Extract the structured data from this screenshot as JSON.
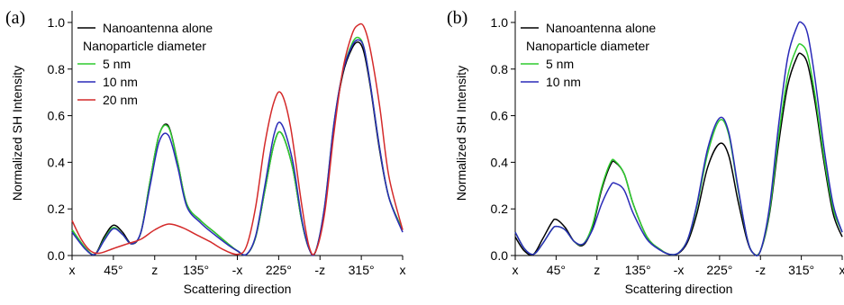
{
  "chart_data": [
    {
      "type": "line",
      "panel_label": "(a)",
      "xlabel": "Scattering direction",
      "ylabel": "Normalized SH Intensity",
      "xlim": [
        0,
        360
      ],
      "ylim": [
        0,
        1.05
      ],
      "x_ticks": [
        0,
        45,
        90,
        135,
        180,
        225,
        270,
        315,
        360
      ],
      "x_tick_labels": [
        "x",
        "45°",
        "z",
        "135°",
        "-x",
        "225°",
        "-z",
        "315°",
        "x"
      ],
      "y_ticks": [
        0,
        0.2,
        0.4,
        0.6,
        0.8,
        1.0
      ],
      "y_tick_labels": [
        "0.0",
        "0.2",
        "0.4",
        "0.6",
        "0.8",
        "1.0"
      ],
      "legend": {
        "placement": "top-left",
        "entries": [
          {
            "label": "Nanoantenna alone",
            "color": "#000000"
          },
          {
            "label": "Nanoparticle diameter",
            "color": null
          },
          {
            "label": "5 nm",
            "color": "#2ecc2e"
          },
          {
            "label": "10 nm",
            "color": "#2a2ab8"
          },
          {
            "label": "20 nm",
            "color": "#d42a2a"
          }
        ]
      },
      "series": [
        {
          "name": "Nanoantenna alone",
          "color": "#000000",
          "x": [
            0,
            15,
            25,
            35,
            45,
            55,
            65,
            75,
            85,
            95,
            105,
            115,
            125,
            140,
            155,
            170,
            180,
            190,
            200,
            210,
            220,
            228,
            240,
            250,
            258,
            265,
            275,
            285,
            295,
            305,
            312,
            318,
            325,
            335,
            345,
            360
          ],
          "y": [
            0.11,
            0.03,
            0.005,
            0.08,
            0.13,
            0.1,
            0.05,
            0.1,
            0.32,
            0.52,
            0.555,
            0.4,
            0.22,
            0.15,
            0.1,
            0.05,
            0.02,
            0.005,
            0.08,
            0.28,
            0.48,
            0.525,
            0.38,
            0.15,
            0.03,
            0.015,
            0.2,
            0.55,
            0.78,
            0.89,
            0.915,
            0.87,
            0.72,
            0.45,
            0.25,
            0.11
          ]
        },
        {
          "name": "5 nm",
          "color": "#2ecc2e",
          "x": [
            0,
            15,
            25,
            35,
            45,
            55,
            65,
            75,
            85,
            95,
            105,
            115,
            125,
            140,
            155,
            170,
            180,
            190,
            200,
            210,
            220,
            228,
            240,
            250,
            258,
            265,
            275,
            285,
            295,
            305,
            312,
            318,
            325,
            335,
            345,
            360
          ],
          "y": [
            0.11,
            0.03,
            0.005,
            0.07,
            0.12,
            0.09,
            0.05,
            0.1,
            0.32,
            0.52,
            0.55,
            0.4,
            0.22,
            0.15,
            0.1,
            0.05,
            0.02,
            0.005,
            0.08,
            0.28,
            0.48,
            0.525,
            0.38,
            0.15,
            0.03,
            0.015,
            0.21,
            0.56,
            0.79,
            0.91,
            0.935,
            0.89,
            0.73,
            0.46,
            0.25,
            0.11
          ]
        },
        {
          "name": "10 nm",
          "color": "#2a2ab8",
          "x": [
            0,
            15,
            25,
            35,
            45,
            55,
            65,
            75,
            85,
            95,
            105,
            115,
            125,
            140,
            155,
            170,
            180,
            190,
            200,
            210,
            220,
            228,
            240,
            250,
            258,
            265,
            275,
            285,
            295,
            305,
            312,
            318,
            325,
            335,
            345,
            360
          ],
          "y": [
            0.1,
            0.025,
            0.005,
            0.065,
            0.115,
            0.09,
            0.05,
            0.1,
            0.3,
            0.49,
            0.515,
            0.38,
            0.21,
            0.14,
            0.09,
            0.045,
            0.02,
            0.005,
            0.085,
            0.3,
            0.52,
            0.565,
            0.41,
            0.16,
            0.03,
            0.015,
            0.21,
            0.56,
            0.79,
            0.9,
            0.925,
            0.89,
            0.73,
            0.46,
            0.25,
            0.1
          ]
        },
        {
          "name": "20 nm",
          "color": "#d42a2a",
          "x": [
            0,
            10,
            20,
            30,
            45,
            60,
            75,
            90,
            105,
            120,
            135,
            150,
            165,
            180,
            190,
            200,
            210,
            220,
            228,
            238,
            250,
            258,
            265,
            275,
            285,
            295,
            305,
            312,
            318,
            325,
            335,
            345,
            360
          ],
          "y": [
            0.15,
            0.07,
            0.02,
            0.01,
            0.03,
            0.05,
            0.07,
            0.11,
            0.135,
            0.12,
            0.09,
            0.06,
            0.025,
            0.005,
            0.04,
            0.21,
            0.48,
            0.66,
            0.695,
            0.55,
            0.22,
            0.04,
            0.015,
            0.18,
            0.52,
            0.8,
            0.95,
            0.99,
            0.98,
            0.88,
            0.64,
            0.34,
            0.11
          ]
        }
      ]
    },
    {
      "type": "line",
      "panel_label": "(b)",
      "xlabel": "Scattering direction",
      "ylabel": "Normalized SH Intensity",
      "xlim": [
        0,
        360
      ],
      "ylim": [
        0,
        1.05
      ],
      "x_ticks": [
        0,
        45,
        90,
        135,
        180,
        225,
        270,
        315,
        360
      ],
      "x_tick_labels": [
        "x",
        "45°",
        "z",
        "135°",
        "-x",
        "225°",
        "-z",
        "315°",
        "x"
      ],
      "y_ticks": [
        0,
        0.2,
        0.4,
        0.6,
        0.8,
        1.0
      ],
      "y_tick_labels": [
        "0.0",
        "0.2",
        "0.4",
        "0.6",
        "0.8",
        "1.0"
      ],
      "legend": {
        "placement": "top-left",
        "entries": [
          {
            "label": "Nanoantenna alone",
            "color": "#000000"
          },
          {
            "label": "Nanoparticle diameter",
            "color": null
          },
          {
            "label": "5 nm",
            "color": "#2ecc2e"
          },
          {
            "label": "10 nm",
            "color": "#2a2ab8"
          }
        ]
      },
      "series": [
        {
          "name": "Nanoantenna alone",
          "color": "#000000",
          "x": [
            0,
            10,
            20,
            30,
            40,
            45,
            55,
            65,
            75,
            85,
            95,
            105,
            110,
            120,
            130,
            145,
            160,
            170,
            180,
            190,
            200,
            212,
            225,
            235,
            245,
            255,
            262,
            270,
            280,
            290,
            300,
            310,
            315,
            322,
            330,
            340,
            350,
            360
          ],
          "y": [
            0.08,
            0.02,
            0.005,
            0.07,
            0.14,
            0.155,
            0.12,
            0.06,
            0.045,
            0.12,
            0.28,
            0.39,
            0.4,
            0.35,
            0.22,
            0.08,
            0.025,
            0.005,
            0.01,
            0.06,
            0.18,
            0.38,
            0.48,
            0.43,
            0.24,
            0.07,
            0.01,
            0.02,
            0.18,
            0.48,
            0.73,
            0.85,
            0.865,
            0.82,
            0.66,
            0.4,
            0.18,
            0.08
          ]
        },
        {
          "name": "5 nm",
          "color": "#2ecc2e",
          "x": [
            0,
            10,
            20,
            30,
            40,
            45,
            55,
            65,
            75,
            85,
            95,
            105,
            110,
            120,
            130,
            145,
            160,
            170,
            180,
            190,
            200,
            212,
            225,
            235,
            245,
            255,
            262,
            270,
            280,
            290,
            300,
            310,
            315,
            322,
            330,
            340,
            350,
            360
          ],
          "y": [
            0.1,
            0.03,
            0.005,
            0.05,
            0.11,
            0.125,
            0.11,
            0.06,
            0.05,
            0.13,
            0.29,
            0.4,
            0.405,
            0.35,
            0.22,
            0.08,
            0.025,
            0.005,
            0.012,
            0.07,
            0.21,
            0.44,
            0.58,
            0.52,
            0.29,
            0.08,
            0.01,
            0.02,
            0.19,
            0.51,
            0.77,
            0.89,
            0.905,
            0.86,
            0.69,
            0.42,
            0.2,
            0.1
          ]
        },
        {
          "name": "10 nm",
          "color": "#2a2ab8",
          "x": [
            0,
            10,
            20,
            30,
            40,
            45,
            55,
            65,
            75,
            85,
            95,
            105,
            110,
            120,
            130,
            145,
            160,
            170,
            180,
            190,
            200,
            212,
            225,
            235,
            245,
            255,
            262,
            270,
            280,
            290,
            300,
            310,
            315,
            322,
            330,
            340,
            350,
            360
          ],
          "y": [
            0.1,
            0.03,
            0.005,
            0.05,
            0.11,
            0.125,
            0.11,
            0.06,
            0.05,
            0.11,
            0.22,
            0.3,
            0.31,
            0.28,
            0.18,
            0.07,
            0.022,
            0.005,
            0.012,
            0.07,
            0.22,
            0.46,
            0.59,
            0.53,
            0.3,
            0.08,
            0.01,
            0.02,
            0.21,
            0.56,
            0.85,
            0.98,
            1.0,
            0.95,
            0.76,
            0.46,
            0.22,
            0.1
          ]
        }
      ]
    }
  ]
}
